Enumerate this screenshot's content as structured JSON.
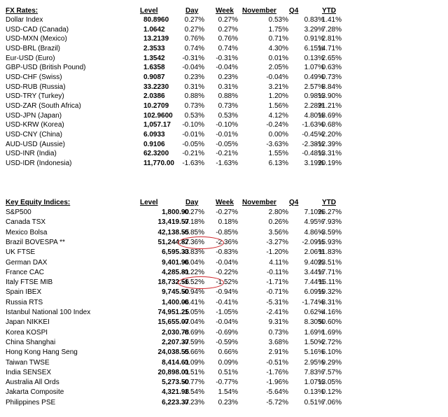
{
  "fx_table": {
    "columns": [
      "FX Rates:",
      "Level",
      "Day",
      "Week",
      "November",
      "Q4",
      "YTD"
    ],
    "rows": [
      [
        "Dollar Index",
        "80.8960",
        "0.27%",
        "0.27%",
        "0.53%",
        "0.83%",
        "1.41%"
      ],
      [
        "USD-CAD (Canada)",
        "1.0642",
        "0.27%",
        "0.27%",
        "1.75%",
        "3.29%",
        "7.28%"
      ],
      [
        "USD-MXN  (Mexico)",
        "13.2139",
        "0.76%",
        "0.76%",
        "0.71%",
        "0.91%",
        "2.81%"
      ],
      [
        "USD-BRL (Brazil)",
        "2.3533",
        "0.74%",
        "0.74%",
        "4.30%",
        "6.15%",
        "14.71%"
      ],
      [
        "Eur-USD (Euro)",
        "1.3542",
        "-0.31%",
        "-0.31%",
        "0.01%",
        "0.13%",
        "2.65%"
      ],
      [
        "GBP-USD (British Pound)",
        "1.6358",
        "-0.04%",
        "-0.04%",
        "2.05%",
        "1.07%",
        "0.63%"
      ],
      [
        "USD-CHF (Swiss)",
        "0.9087",
        "0.23%",
        "0.23%",
        "-0.04%",
        "0.49%",
        "-0.73%"
      ],
      [
        "USD-RUB (Russia)",
        "33.2230",
        "0.31%",
        "0.31%",
        "3.21%",
        "2.57%",
        "8.84%"
      ],
      [
        "USD-TRY (Turkey)",
        "2.0386",
        "0.88%",
        "0.88%",
        "1.20%",
        "0.98%",
        "13.90%"
      ],
      [
        "USD-ZAR (South Africa)",
        "10.2709",
        "0.73%",
        "0.73%",
        "1.56%",
        "2.28%",
        "21.21%"
      ],
      [
        "USD-JPN (Japan)",
        "102.9600",
        "0.53%",
        "0.53%",
        "4.12%",
        "4.80%",
        "18.69%"
      ],
      [
        "USD-KRW (Korea)",
        "1,057.17",
        "-0.10%",
        "-0.10%",
        "-0.24%",
        "-1.63%",
        "-0.68%"
      ],
      [
        "USD-CNY (China)",
        "6.0933",
        "-0.01%",
        "-0.01%",
        "0.00%",
        "-0.45%",
        "-2.20%"
      ],
      [
        "AUD-USD (Aussie)",
        "0.9106",
        "-0.05%",
        "-0.05%",
        "-3.63%",
        "-2.38%",
        "-12.39%"
      ],
      [
        "USD-INR (India)",
        "62.3200",
        "-0.21%",
        "-0.21%",
        "1.55%",
        "-0.48%",
        "13.31%"
      ],
      [
        "USD-IDR (Indonesia)",
        "11,770.00",
        "-1.63%",
        "-1.63%",
        "6.13%",
        "3.19%",
        "20.19%"
      ]
    ]
  },
  "equity_table": {
    "columns": [
      "Key Equity Indices:",
      "Level",
      "Day",
      "Week",
      "November",
      "Q4",
      "YTD"
    ],
    "rows": [
      [
        "S&P500",
        "1,800.90",
        "-0.27%",
        "-0.27%",
        "2.80%",
        "7.10%",
        "26.27%"
      ],
      [
        "Canada TSX",
        "13,419.57",
        "0.18%",
        "0.18%",
        "0.26%",
        "4.95%",
        "7.93%"
      ],
      [
        "Mexico Bolsa",
        "42,138.55",
        "-0.85%",
        "-0.85%",
        "3.56%",
        "4.86%",
        "-3.59%"
      ],
      [
        "Brazil BOVESPA **",
        "51,244.87",
        "-2.36%",
        "-2.36%",
        "-3.27%",
        "-2.09%",
        "-15.93%"
      ],
      [
        "UK FTSE",
        "6,595.33",
        "-0.83%",
        "-0.83%",
        "-1.20%",
        "2.06%",
        "11.83%"
      ],
      [
        "German DAX",
        "9,401.96",
        "-0.04%",
        "-0.04%",
        "4.11%",
        "9.40%",
        "23.51%"
      ],
      [
        "France CAC",
        "4,285.81",
        "-0.22%",
        "-0.22%",
        "-0.11%",
        "3.44%",
        "17.71%"
      ],
      [
        "Italy FTSE MIB",
        "18,732.56",
        "-1.52%",
        "-1.52%",
        "-1.71%",
        "7.44%",
        "15.11%"
      ],
      [
        "Spain IBEX",
        "9,745.50",
        "-0.94%",
        "-0.94%",
        "-0.71%",
        "6.09%",
        "19.32%"
      ],
      [
        "Russia RTS",
        "1,400.06",
        "-0.41%",
        "-0.41%",
        "-5.31%",
        "-1.74%",
        "-8.31%"
      ],
      [
        "Istanbul National 100 Index",
        "74,951.25",
        "-1.05%",
        "-1.05%",
        "-2.41%",
        "0.62%",
        "-4.16%"
      ],
      [
        "Japan NIKKEI",
        "15,655.07",
        "-0.04%",
        "-0.04%",
        "9.31%",
        "8.30%",
        "50.60%"
      ],
      [
        "Korea KOSPI",
        "2,030.78",
        "-0.69%",
        "-0.69%",
        "0.73%",
        "1.69%",
        "1.69%"
      ],
      [
        "China Shanghai",
        "2,207.37",
        "-0.59%",
        "-0.59%",
        "3.68%",
        "1.50%",
        "-2.72%"
      ],
      [
        "Hong Kong Hang Seng",
        "24,038.55",
        "0.66%",
        "0.66%",
        "2.91%",
        "5.16%",
        "6.10%"
      ],
      [
        "Taiwan  TWSE",
        "8,414.61",
        "0.09%",
        "0.09%",
        "-0.51%",
        "2.95%",
        "9.29%"
      ],
      [
        "India SENSEX",
        "20,898.01",
        "0.51%",
        "0.51%",
        "-1.76%",
        "7.83%",
        "7.57%"
      ],
      [
        "Australia All Ords",
        "5,273.50",
        "-0.77%",
        "-0.77%",
        "-1.96%",
        "1.07%",
        "13.05%"
      ],
      [
        "Jakarta Composite",
        "4,321.98",
        "1.54%",
        "1.54%",
        "-5.64%",
        "0.13%",
        "0.12%"
      ],
      [
        "Philippines PSE",
        "6,223.37",
        "0.23%",
        "0.23%",
        "-5.72%",
        "0.51%",
        "7.06%"
      ]
    ]
  }
}
